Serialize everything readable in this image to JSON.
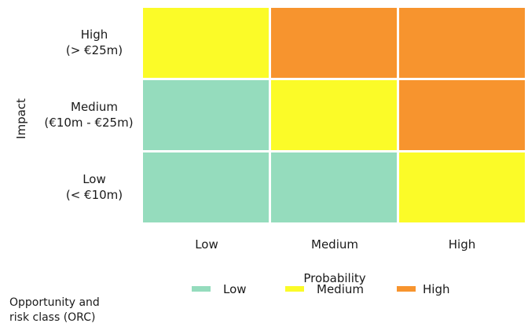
{
  "chart_data": {
    "type": "heatmap",
    "x_title": "Probability",
    "y_title": "Impact",
    "x_categories": [
      "Low",
      "Medium",
      "High"
    ],
    "y_categories": [
      {
        "label": "High",
        "range": "(> €25m)"
      },
      {
        "label": "Medium",
        "range": "(€10m - €25m)"
      },
      {
        "label": "Low",
        "range": "(< €10m)"
      }
    ],
    "cells": [
      [
        "Medium",
        "High",
        "High"
      ],
      [
        "Low",
        "Medium",
        "High"
      ],
      [
        "Low",
        "Low",
        "Medium"
      ]
    ],
    "classes": [
      {
        "name": "Low",
        "color": "#95dcbd"
      },
      {
        "name": "Medium",
        "color": "#fbfb28"
      },
      {
        "name": "High",
        "color": "#f7942e"
      }
    ],
    "legend": {
      "title_line1": "Opportunity and",
      "title_line2": "risk class (ORC)",
      "placement": "bottom"
    }
  }
}
